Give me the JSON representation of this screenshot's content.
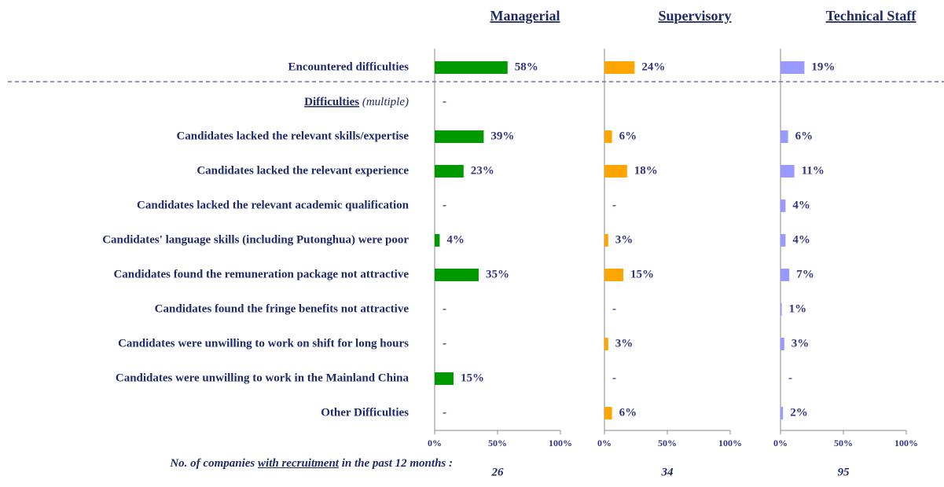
{
  "chart_data": {
    "type": "bar",
    "orientation": "horizontal",
    "categories": [
      "Encountered difficulties",
      null,
      "Candidates lacked the relevant skills/expertise",
      "Candidates lacked the relevant experience",
      "Candidates lacked the relevant academic qualification",
      "Candidates' language skills (including Putonghua) were poor",
      "Candidates found the remuneration package not attractive",
      "Candidates found the fringe benefits not attractive",
      "Candidates were unwilling to work on shift for long hours",
      "Candidates were unwilling to work in the Mainland China",
      "Other Difficulties"
    ],
    "section_header": {
      "label": "Difficulties",
      "note": "(multiple)"
    },
    "series": [
      {
        "name": "Managerial",
        "color": "#009900",
        "values": [
          58,
          null,
          39,
          23,
          null,
          4,
          35,
          null,
          null,
          15,
          null
        ],
        "value_labels": [
          "58%",
          "-",
          "39%",
          "23%",
          "-",
          "4%",
          "35%",
          "-",
          "-",
          "15%",
          "-"
        ],
        "count": 26
      },
      {
        "name": "Supervisory",
        "color": "#ffa500",
        "values": [
          24,
          null,
          6,
          18,
          null,
          3,
          15,
          null,
          3,
          null,
          6
        ],
        "value_labels": [
          "24%",
          null,
          "6%",
          "18%",
          "-",
          "3%",
          "15%",
          "-",
          "3%",
          "-",
          "6%"
        ],
        "count": 34
      },
      {
        "name": "Technical Staff",
        "color": "#9999ff",
        "values": [
          19,
          null,
          6,
          11,
          4,
          4,
          7,
          1,
          3,
          null,
          2
        ],
        "value_labels": [
          "19%",
          null,
          "6%",
          "11%",
          "4%",
          "4%",
          "7%",
          "1%",
          "3%",
          "-",
          "2%"
        ],
        "count": 95
      }
    ],
    "xlim": [
      0,
      100
    ],
    "xticks": [
      {
        "value": 0,
        "label": "0%"
      },
      {
        "value": 50,
        "label": "50%"
      },
      {
        "value": 100,
        "label": "100%"
      }
    ],
    "footer_note": {
      "before": "No. of companies ",
      "underlined": "with recruitment",
      "after": " in the past 12 months :"
    }
  }
}
